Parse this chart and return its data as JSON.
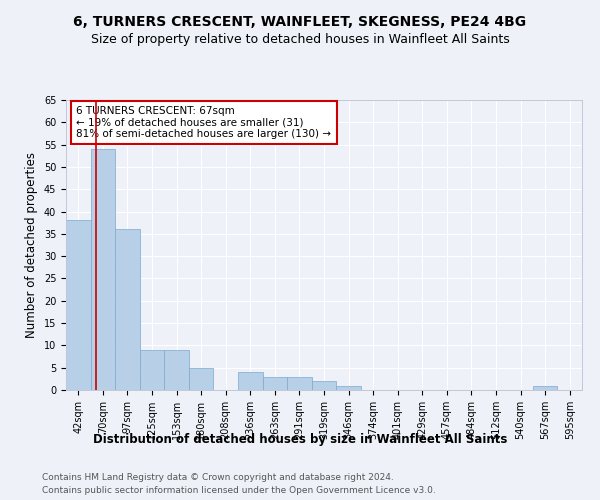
{
  "title": "6, TURNERS CRESCENT, WAINFLEET, SKEGNESS, PE24 4BG",
  "subtitle": "Size of property relative to detached houses in Wainfleet All Saints",
  "xlabel": "Distribution of detached houses by size in Wainfleet All Saints",
  "ylabel": "Number of detached properties",
  "categories": [
    "42sqm",
    "70sqm",
    "97sqm",
    "125sqm",
    "153sqm",
    "180sqm",
    "208sqm",
    "236sqm",
    "263sqm",
    "291sqm",
    "319sqm",
    "346sqm",
    "374sqm",
    "401sqm",
    "429sqm",
    "457sqm",
    "484sqm",
    "512sqm",
    "540sqm",
    "567sqm",
    "595sqm"
  ],
  "values": [
    38,
    54,
    36,
    9,
    9,
    5,
    0,
    4,
    3,
    3,
    2,
    1,
    0,
    0,
    0,
    0,
    0,
    0,
    0,
    1,
    0
  ],
  "bar_color": "#b8cfe8",
  "bar_edge_color": "#7aaad0",
  "highlight_line_color": "#cc0000",
  "annotation_text": "6 TURNERS CRESCENT: 67sqm\n← 19% of detached houses are smaller (31)\n81% of semi-detached houses are larger (130) →",
  "annotation_box_color": "white",
  "annotation_box_edge": "#cc0000",
  "ylim": [
    0,
    65
  ],
  "yticks": [
    0,
    5,
    10,
    15,
    20,
    25,
    30,
    35,
    40,
    45,
    50,
    55,
    60,
    65
  ],
  "footer1": "Contains HM Land Registry data © Crown copyright and database right 2024.",
  "footer2": "Contains public sector information licensed under the Open Government Licence v3.0.",
  "background_color": "#eef2f8",
  "grid_color": "#ffffff",
  "title_fontsize": 10,
  "subtitle_fontsize": 9,
  "axis_label_fontsize": 8.5,
  "tick_fontsize": 7,
  "footer_fontsize": 6.5,
  "annotation_fontsize": 7.5
}
